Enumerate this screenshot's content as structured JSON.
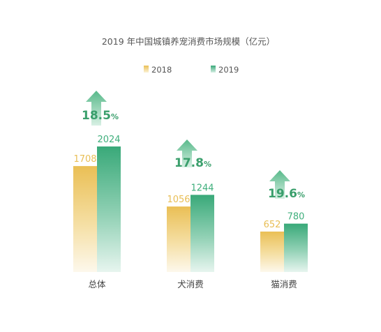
{
  "chart_data": {
    "type": "bar",
    "title": "2019 年中国城镇养宠消费市场规模（亿元）",
    "categories": [
      "总体",
      "犬消费",
      "猫消费"
    ],
    "series": [
      {
        "name": "2018",
        "values": [
          1708,
          1056,
          652
        ],
        "color": "#E8BE55"
      },
      {
        "name": "2019",
        "values": [
          2024,
          1244,
          780
        ],
        "color": "#3FAF7C"
      }
    ],
    "growth": [
      {
        "value": "18.5",
        "unit": "%"
      },
      {
        "value": "17.8",
        "unit": "%"
      },
      {
        "value": "19.6",
        "unit": "%"
      }
    ],
    "growth_color": "#3A9F6C",
    "legend_position": "top-center",
    "grid": false,
    "ylim": [
      0,
      2100
    ]
  }
}
